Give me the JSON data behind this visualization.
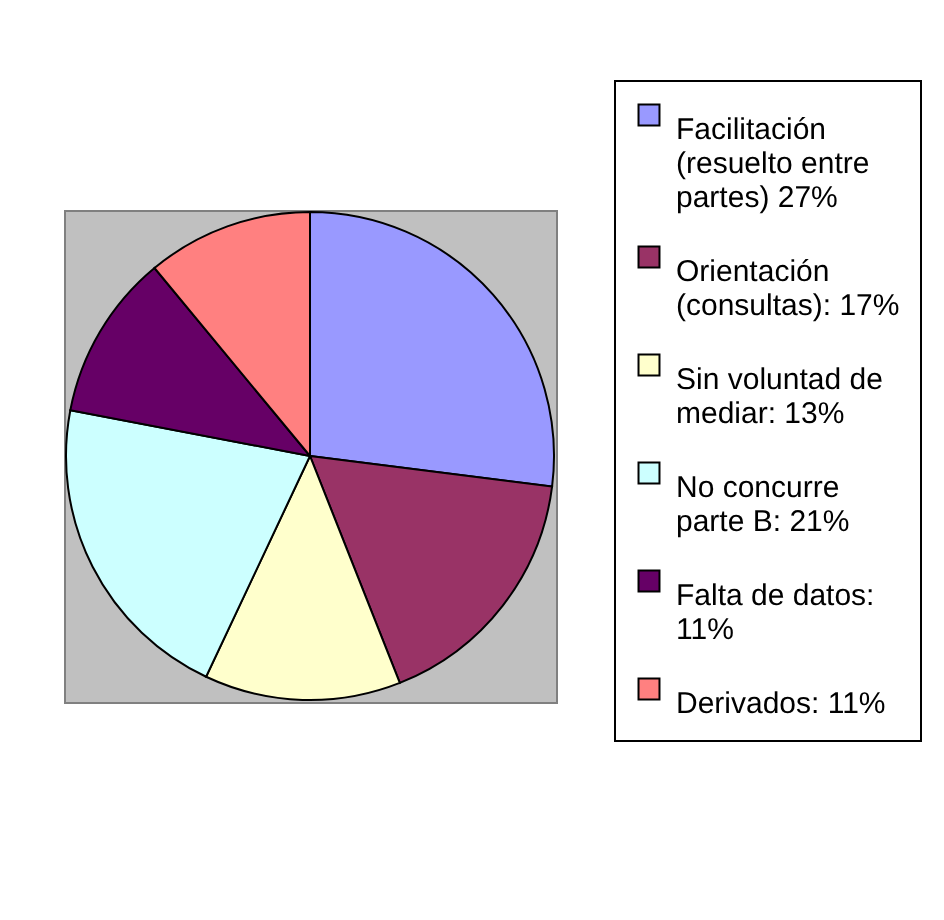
{
  "chart_data": {
    "type": "pie",
    "categories": [
      "Facilitación (resuelto entre partes) 27%",
      "Orientación (consultas): 17%",
      "Sin voluntad de mediar: 13%",
      "No concurre parte B: 21%",
      "Falta de datos: 11%",
      "Derivados: 11%"
    ],
    "values": [
      27,
      17,
      13,
      21,
      11,
      11
    ],
    "colors": [
      "#9999ff",
      "#993366",
      "#ffffcc",
      "#ccffff",
      "#660066",
      "#ff8080"
    ],
    "legend": "right"
  }
}
